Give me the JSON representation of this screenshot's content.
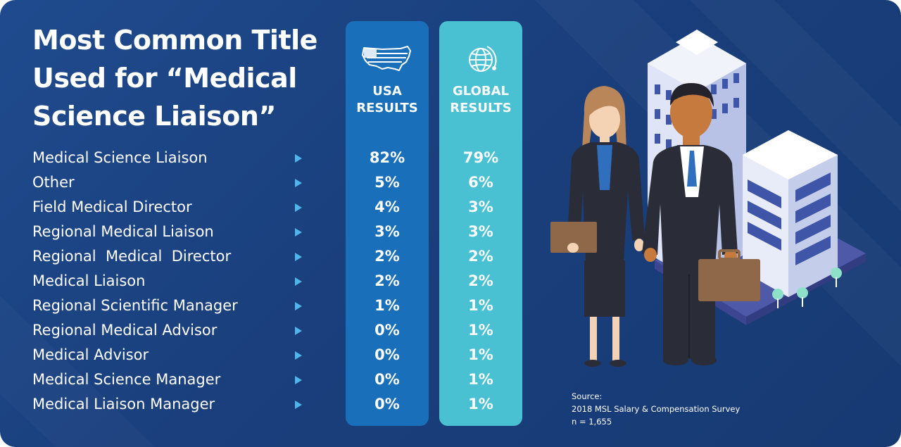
{
  "title": "Most Common Title Used for “Medical Science Liaison”",
  "columns": {
    "usa": {
      "header_line1": "USA",
      "header_line2": "RESULTS",
      "icon": "usa-flag-map-icon"
    },
    "global": {
      "header_line1": "GLOBAL",
      "header_line2": "RESULTS",
      "icon": "globe-icon"
    }
  },
  "colors": {
    "background": "#1a3f7c",
    "usa": "#1a6fba",
    "global": "#49c1d2",
    "arrow": "#4fb5ea"
  },
  "chart_data": {
    "type": "table",
    "title": "Most Common Title Used for “Medical Science Liaison”",
    "columns": [
      "USA RESULTS",
      "GLOBAL RESULTS"
    ],
    "categories": [
      "Medical Science Liaison",
      "Other",
      "Field Medical Director",
      "Regional Medical Liaison",
      "Regional  Medical  Director",
      "Medical Liaison",
      "Regional Scientific Manager",
      "Regional Medical Advisor",
      "Medical Advisor",
      "Medical Science Manager",
      "Medical Liaison Manager"
    ],
    "series": [
      {
        "name": "USA RESULTS",
        "values": [
          "82%",
          "5%",
          "4%",
          "3%",
          "2%",
          "2%",
          "1%",
          "0%",
          "0%",
          "0%",
          "0%"
        ]
      },
      {
        "name": "GLOBAL RESULTS",
        "values": [
          "79%",
          "6%",
          "3%",
          "3%",
          "2%",
          "2%",
          "1%",
          "1%",
          "1%",
          "1%",
          "1%"
        ]
      }
    ]
  },
  "source": {
    "label": "Source:",
    "name": "2018 MSL Salary & Compensation Survey",
    "n": "n = 1,655"
  }
}
